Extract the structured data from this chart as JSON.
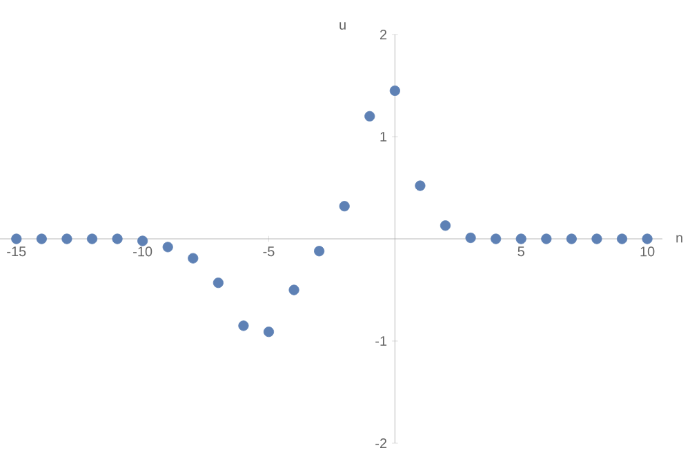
{
  "chart_data": {
    "type": "scatter",
    "xlabel": "n",
    "ylabel": "u",
    "x": [
      -15,
      -14,
      -13,
      -12,
      -11,
      -10,
      -9,
      -8,
      -7,
      -6,
      -5,
      -4,
      -3,
      -2,
      -1,
      0,
      1,
      2,
      3,
      4,
      5,
      6,
      7,
      8,
      9,
      10
    ],
    "series": [
      {
        "color": "#5e81b5",
        "values": [
          0,
          0,
          0,
          0,
          0,
          -0.02,
          -0.08,
          -0.19,
          -0.43,
          -0.85,
          -0.91,
          -0.5,
          -0.12,
          0.32,
          1.2,
          1.45,
          0.52,
          0.13,
          0.01,
          0,
          0,
          0,
          0,
          0,
          0,
          0
        ]
      }
    ],
    "xlim": [
      -15.65,
      10.6
    ],
    "ylim": [
      -2,
      2
    ],
    "xticks": [
      -15,
      -10,
      -5,
      5,
      10
    ],
    "yticks": [
      -2,
      -1,
      1,
      2
    ],
    "marker": "circle",
    "grid": false
  }
}
